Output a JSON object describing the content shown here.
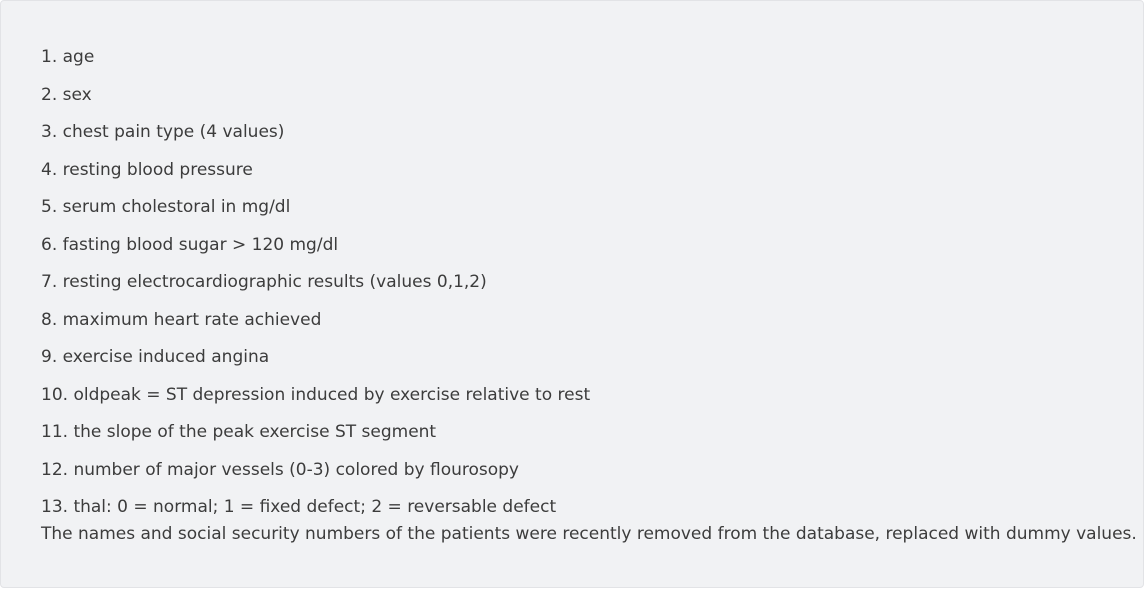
{
  "attributes": [
    "1. age",
    "2. sex",
    "3. chest pain type (4 values)",
    "4. resting blood pressure",
    "5. serum cholestoral in mg/dl",
    "6. fasting blood sugar > 120 mg/dl",
    "7. resting electrocardiographic results (values 0,1,2)",
    "8. maximum heart rate achieved",
    "9. exercise induced angina",
    "10. oldpeak = ST depression induced by exercise relative to rest",
    "11. the slope of the peak exercise ST segment",
    "12. number of major vessels (0-3) colored by flourosopy",
    "13. thal: 0 = normal; 1 = fixed defect; 2 = reversable defect"
  ],
  "note": "The names and social security numbers of the patients were recently removed from the database, replaced with dummy values."
}
